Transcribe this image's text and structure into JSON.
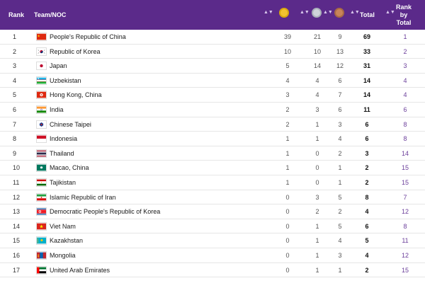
{
  "header": {
    "rank": "Rank",
    "team": "Team/NOC",
    "total": "Total",
    "rank_by_total_1": "Rank",
    "rank_by_total_2": "by",
    "rank_by_total_3": "Total",
    "sort_glyph": "▲▼"
  },
  "colors": {
    "header_bg": "#5b2a8a",
    "rank_total_text": "#6a3d9a"
  },
  "rows": [
    {
      "rank": "1",
      "team": "People's Republic of China",
      "g": "39",
      "s": "21",
      "b": "9",
      "t": "69",
      "rt": "1",
      "flag": "cn"
    },
    {
      "rank": "2",
      "team": "Republic of Korea",
      "g": "10",
      "s": "10",
      "b": "13",
      "t": "33",
      "rt": "2",
      "flag": "kr"
    },
    {
      "rank": "3",
      "team": "Japan",
      "g": "5",
      "s": "14",
      "b": "12",
      "t": "31",
      "rt": "3",
      "flag": "jp"
    },
    {
      "rank": "4",
      "team": "Uzbekistan",
      "g": "4",
      "s": "4",
      "b": "6",
      "t": "14",
      "rt": "4",
      "flag": "uz"
    },
    {
      "rank": "5",
      "team": "Hong Kong, China",
      "g": "3",
      "s": "4",
      "b": "7",
      "t": "14",
      "rt": "4",
      "flag": "hk"
    },
    {
      "rank": "6",
      "team": "India",
      "g": "2",
      "s": "3",
      "b": "6",
      "t": "11",
      "rt": "6",
      "flag": "in"
    },
    {
      "rank": "7",
      "team": "Chinese Taipei",
      "g": "2",
      "s": "1",
      "b": "3",
      "t": "6",
      "rt": "8",
      "flag": "tpe"
    },
    {
      "rank": "8",
      "team": "Indonesia",
      "g": "1",
      "s": "1",
      "b": "4",
      "t": "6",
      "rt": "8",
      "flag": "id"
    },
    {
      "rank": "9",
      "team": "Thailand",
      "g": "1",
      "s": "0",
      "b": "2",
      "t": "3",
      "rt": "14",
      "flag": "th"
    },
    {
      "rank": "10",
      "team": "Macao, China",
      "g": "1",
      "s": "0",
      "b": "1",
      "t": "2",
      "rt": "15",
      "flag": "mo"
    },
    {
      "rank": "11",
      "team": "Tajikistan",
      "g": "1",
      "s": "0",
      "b": "1",
      "t": "2",
      "rt": "15",
      "flag": "tj"
    },
    {
      "rank": "12",
      "team": "Islamic Republic of Iran",
      "g": "0",
      "s": "3",
      "b": "5",
      "t": "8",
      "rt": "7",
      "flag": "ir"
    },
    {
      "rank": "13",
      "team": "Democratic People's Republic of Korea",
      "g": "0",
      "s": "2",
      "b": "2",
      "t": "4",
      "rt": "12",
      "flag": "kp"
    },
    {
      "rank": "14",
      "team": "Viet Nam",
      "g": "0",
      "s": "1",
      "b": "5",
      "t": "6",
      "rt": "8",
      "flag": "vn"
    },
    {
      "rank": "15",
      "team": "Kazakhstan",
      "g": "0",
      "s": "1",
      "b": "4",
      "t": "5",
      "rt": "11",
      "flag": "kz"
    },
    {
      "rank": "16",
      "team": "Mongolia",
      "g": "0",
      "s": "1",
      "b": "3",
      "t": "4",
      "rt": "12",
      "flag": "mn"
    },
    {
      "rank": "17",
      "team": "United Arab Emirates",
      "g": "0",
      "s": "1",
      "b": "1",
      "t": "2",
      "rt": "15",
      "flag": "ae"
    }
  ]
}
